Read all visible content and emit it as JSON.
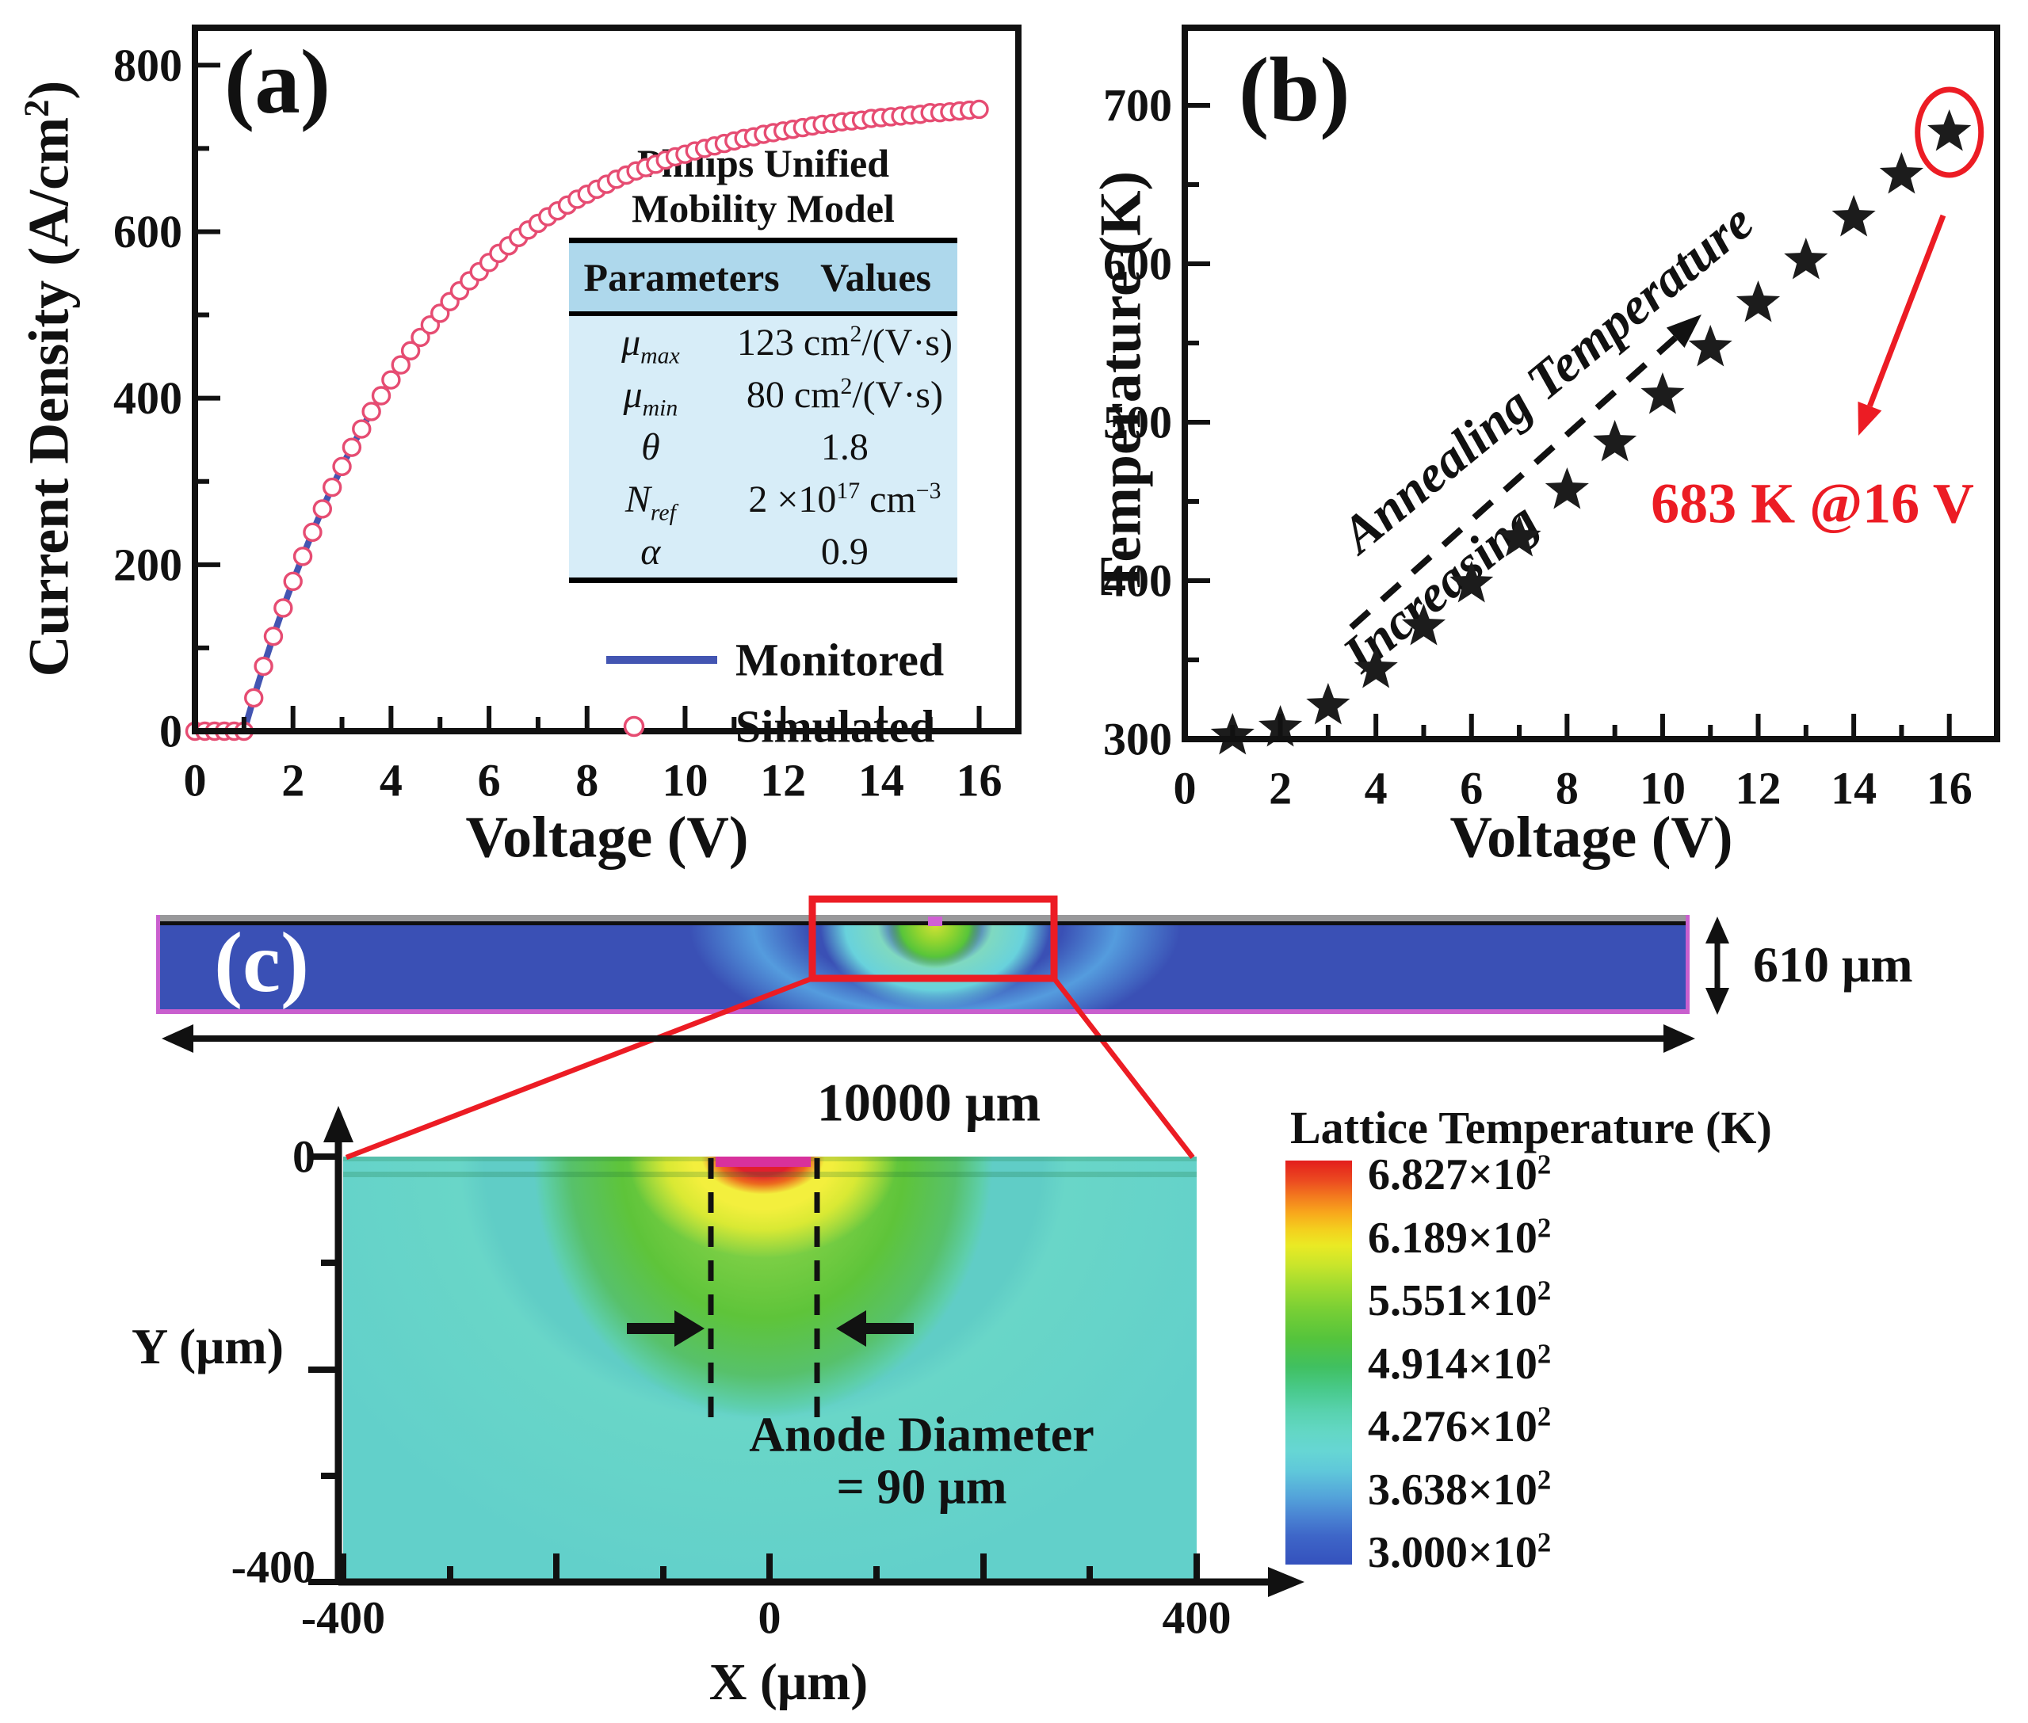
{
  "colors": {
    "monitored_line": "#4355b2",
    "simulated_marker": "#e64c72",
    "star_marker": "#1c1c1c",
    "annotation_red": "#ec1c24",
    "table_header_bg": "#aed8ec",
    "table_body_bg": "#d7edf8",
    "wafer_blue": "#3a50b5",
    "wafer_edge_magenta": "#c95fce",
    "heatmap_teal": "#60cdc6"
  },
  "chart_data": [
    {
      "id": "a",
      "type": "line",
      "panel_label": "(a)",
      "xlabel": "Voltage (V)",
      "ylabel_html": "Current Density (A/cm<sup>2</sup>)",
      "xlim": [
        0,
        16.8
      ],
      "ylim": [
        0,
        845
      ],
      "xticks": [
        0,
        2,
        4,
        6,
        8,
        10,
        12,
        14,
        16
      ],
      "xminor": [
        1,
        3,
        5,
        7,
        9,
        11,
        13,
        15
      ],
      "yticks": [
        0,
        200,
        400,
        600,
        800
      ],
      "yminor": [
        100,
        300,
        500,
        700
      ],
      "curve": {
        "x_start": 0,
        "x_step": 0.2,
        "y": [
          0,
          0,
          0,
          0,
          0,
          0,
          40,
          78,
          114,
          148,
          180,
          210,
          239,
          267,
          293,
          318,
          341,
          363,
          384,
          403,
          422,
          440,
          457,
          473,
          488,
          502,
          516,
          529,
          541,
          552,
          563,
          574,
          583,
          593,
          602,
          610,
          618,
          625,
          632,
          639,
          645,
          651,
          657,
          663,
          668,
          673,
          677,
          681,
          686,
          690,
          693,
          697,
          700,
          703,
          706,
          709,
          712,
          714,
          717,
          719,
          721,
          723,
          725,
          727,
          729,
          730,
          732,
          733,
          734,
          736,
          737,
          738,
          739,
          740,
          741,
          743,
          743,
          744,
          745,
          746,
          747
        ]
      },
      "legend": [
        {
          "label": "Monitored",
          "marker": "line"
        },
        {
          "label": "Simulated",
          "marker": "open-circle"
        }
      ],
      "inset_table": {
        "title_lines": [
          "Philips Unified",
          "Mobility Model"
        ],
        "headers": [
          "Parameters",
          "Values"
        ],
        "rows": [
          {
            "param_html": "<i>μ</i><sub>max</sub>",
            "value_html": "123 cm<sup>2</sup>/(V·s)"
          },
          {
            "param_html": "<i>μ</i><sub>min</sub>",
            "value_html": "80 cm<sup>2</sup>/(V·s)"
          },
          {
            "param_html": "<i>θ</i>",
            "value_html": "1.8"
          },
          {
            "param_html": "<i>N</i><sub>ref</sub>",
            "value_html": "2 ×10<sup>17</sup> cm<sup>−3</sup>"
          },
          {
            "param_html": "<i>α</i>",
            "value_html": "0.9"
          }
        ]
      }
    },
    {
      "id": "b",
      "type": "scatter",
      "marker": "star",
      "panel_label": "(b)",
      "xlabel": "Voltage (V)",
      "ylabel": "Temperature (K)",
      "xlim": [
        0,
        17
      ],
      "ylim": [
        300,
        749
      ],
      "xticks": [
        0,
        2,
        4,
        6,
        8,
        10,
        12,
        14,
        16
      ],
      "xminor": [
        1,
        3,
        5,
        7,
        9,
        11,
        13,
        15
      ],
      "yticks": [
        300,
        400,
        500,
        600,
        700
      ],
      "yminor": [
        350,
        450,
        550,
        650
      ],
      "x": [
        1,
        2,
        3,
        4,
        5,
        6,
        7,
        8,
        9,
        10,
        11,
        12,
        13,
        14,
        15,
        16
      ],
      "y": [
        302,
        307,
        321,
        344,
        371,
        398,
        427,
        457,
        487,
        517,
        547,
        575,
        602,
        629,
        656,
        683
      ],
      "annotations": {
        "trend_line1": "Annealing Temperature",
        "trend_line2": "Increasing",
        "peak_callout": "683 K @16 V",
        "peak_value_K": 683,
        "peak_voltage_V": 16
      }
    },
    {
      "id": "c",
      "type": "heatmap",
      "panel_label": "(c)",
      "wafer": {
        "width_label": "10000 μm",
        "thickness_label": "610 μm"
      },
      "zoom_plot": {
        "xlabel": "X (μm)",
        "ylabel": "Y (μm)",
        "xlim_um": [
          -400,
          400
        ],
        "ylim_um": [
          -400,
          0
        ],
        "xtick_labels": [
          "-400",
          "0",
          "400"
        ],
        "ytick_labels": [
          "0",
          "-400"
        ],
        "anode_line1": "Anode Diameter",
        "anode_line2": "= 90 μm",
        "anode_diameter_um": 90
      },
      "colorbar": {
        "title": "Lattice Temperature (K)",
        "tick_labels_html": [
          "6.827×10<sup>2</sup>",
          "6.189×10<sup>2</sup>",
          "5.551×10<sup>2</sup>",
          "4.914×10<sup>2</sup>",
          "4.276×10<sup>2</sup>",
          "3.638×10<sup>2</sup>",
          "3.000×10<sup>2</sup>"
        ],
        "max_K": 682.7,
        "min_K": 300.0
      }
    }
  ]
}
